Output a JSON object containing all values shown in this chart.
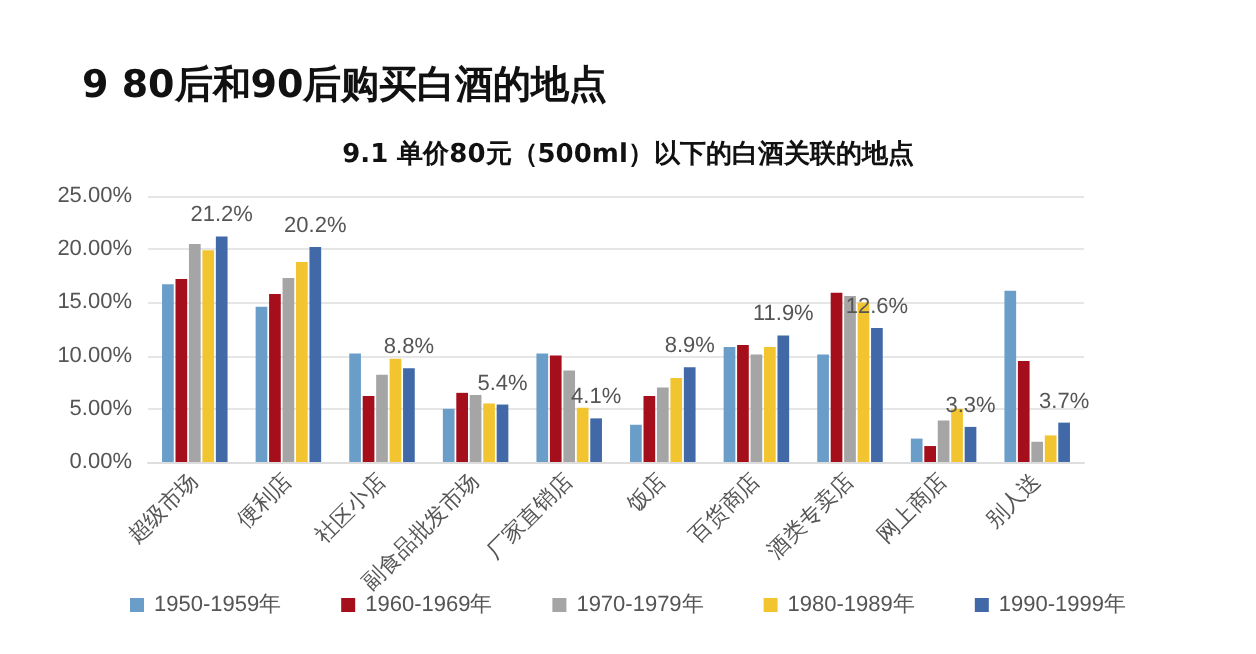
{
  "chart_data": {
    "type": "bar",
    "title": "9 80后和90后购买白酒的地点",
    "subtitle": "9.1 单价80元（500ml）以下的白酒关联的地点",
    "categories": [
      "超级市场",
      "便利店",
      "社区小店",
      "副食品批发市场",
      "厂家直销店",
      "饭店",
      "百货商店",
      "酒类专卖店",
      "网上商店",
      "别人送"
    ],
    "series": [
      {
        "name": "1950-1959年",
        "color": "#6a9ec9",
        "values": [
          16.7,
          14.6,
          10.2,
          5.0,
          10.2,
          3.5,
          10.8,
          10.1,
          2.2,
          16.1
        ]
      },
      {
        "name": "1960-1969年",
        "color": "#a50f1c",
        "values": [
          17.2,
          15.8,
          6.2,
          6.5,
          10.0,
          6.2,
          11.0,
          15.9,
          1.5,
          9.5
        ]
      },
      {
        "name": "1970-1979年",
        "color": "#a5a5a5",
        "values": [
          20.5,
          17.3,
          8.2,
          6.3,
          8.6,
          7.0,
          10.1,
          15.6,
          3.9,
          1.9
        ]
      },
      {
        "name": "1980-1989年",
        "color": "#f2c530",
        "values": [
          19.9,
          18.8,
          9.7,
          5.5,
          5.1,
          7.9,
          10.8,
          15.0,
          5.0,
          2.5
        ]
      },
      {
        "name": "1990-1999年",
        "color": "#4169a8",
        "values": [
          21.2,
          20.2,
          8.8,
          5.4,
          4.1,
          8.9,
          11.9,
          12.6,
          3.3,
          3.7
        ],
        "value_labels": [
          "21.2%",
          "20.2%",
          "8.8%",
          "5.4%",
          "4.1%",
          "8.9%",
          "11.9%",
          "12.6%",
          "3.3%",
          "3.7%"
        ]
      }
    ],
    "ylim": [
      0,
      25
    ],
    "yticks": [
      {
        "value": 0,
        "label": "0.00%"
      },
      {
        "value": 5,
        "label": "5.00%"
      },
      {
        "value": 10,
        "label": "10.00%"
      },
      {
        "value": 15,
        "label": "15.00%"
      },
      {
        "value": 20,
        "label": "20.00%"
      },
      {
        "value": 25,
        "label": "25.00%"
      }
    ],
    "grid": "y",
    "legend": "bottom"
  }
}
